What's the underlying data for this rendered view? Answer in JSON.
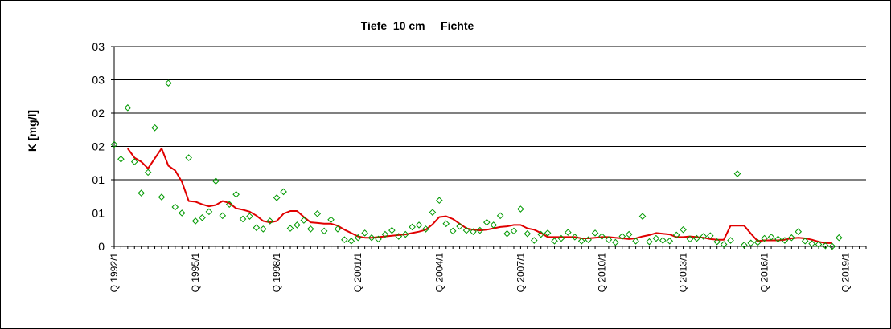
{
  "chart_data": {
    "type": "line",
    "title": "Tiefe  10 cm     Fichte",
    "xlabel": "",
    "ylabel": "K [mg/l]",
    "x_tick_labels": [
      "Q 1992/1",
      "Q 1995/1",
      "Q 1998/1",
      "Q 2001/1",
      "Q 2004/1",
      "Q 2007/1",
      "Q 2010/1",
      "Q 2013/1",
      "Q 2016/1",
      "Q 2019/1"
    ],
    "y_tick_labels": [
      "0",
      "01",
      "01",
      "02",
      "02",
      "03",
      "03"
    ],
    "y_tick_values": [
      0,
      0.5,
      1.0,
      1.5,
      2.0,
      2.5,
      3.0
    ],
    "ylim": [
      0,
      3.0
    ],
    "xlim": [
      1992.0,
      2019.75
    ],
    "grid": "horizontal",
    "colors": {
      "line": "#e00000",
      "markers": "#009900",
      "grid": "#000000"
    },
    "series": [
      {
        "style": "markers-diamond",
        "points": [
          [
            1992.0,
            1.53
          ],
          [
            1992.25,
            1.31
          ],
          [
            1992.5,
            2.08
          ],
          [
            1992.75,
            1.27
          ],
          [
            1993.0,
            0.8
          ],
          [
            1993.25,
            1.11
          ],
          [
            1993.5,
            1.78
          ],
          [
            1993.75,
            0.74
          ],
          [
            1994.0,
            2.45
          ],
          [
            1994.25,
            0.59
          ],
          [
            1994.5,
            0.5
          ],
          [
            1994.75,
            1.33
          ],
          [
            1995.0,
            0.38
          ],
          [
            1995.25,
            0.43
          ],
          [
            1995.5,
            0.52
          ],
          [
            1995.75,
            0.98
          ],
          [
            1996.0,
            0.46
          ],
          [
            1996.25,
            0.63
          ],
          [
            1996.5,
            0.78
          ],
          [
            1996.75,
            0.41
          ],
          [
            1997.0,
            0.45
          ],
          [
            1997.25,
            0.28
          ],
          [
            1997.5,
            0.26
          ],
          [
            1997.75,
            0.38
          ],
          [
            1998.0,
            0.73
          ],
          [
            1998.25,
            0.82
          ],
          [
            1998.5,
            0.27
          ],
          [
            1998.75,
            0.32
          ],
          [
            1999.0,
            0.39
          ],
          [
            1999.25,
            0.26
          ],
          [
            1999.5,
            0.49
          ],
          [
            1999.75,
            0.23
          ],
          [
            2000.0,
            0.4
          ],
          [
            2000.25,
            0.26
          ],
          [
            2000.5,
            0.1
          ],
          [
            2000.75,
            0.08
          ],
          [
            2001.0,
            0.13
          ],
          [
            2001.25,
            0.2
          ],
          [
            2001.5,
            0.13
          ],
          [
            2001.75,
            0.11
          ],
          [
            2002.0,
            0.18
          ],
          [
            2002.25,
            0.24
          ],
          [
            2002.5,
            0.15
          ],
          [
            2002.75,
            0.18
          ],
          [
            2003.0,
            0.29
          ],
          [
            2003.25,
            0.32
          ],
          [
            2003.5,
            0.26
          ],
          [
            2003.75,
            0.51
          ],
          [
            2004.0,
            0.69
          ],
          [
            2004.25,
            0.34
          ],
          [
            2004.5,
            0.23
          ],
          [
            2004.75,
            0.3
          ],
          [
            2005.0,
            0.24
          ],
          [
            2005.25,
            0.22
          ],
          [
            2005.5,
            0.24
          ],
          [
            2005.75,
            0.36
          ],
          [
            2006.0,
            0.32
          ],
          [
            2006.25,
            0.46
          ],
          [
            2006.5,
            0.19
          ],
          [
            2006.75,
            0.23
          ],
          [
            2007.0,
            0.56
          ],
          [
            2007.25,
            0.19
          ],
          [
            2007.5,
            0.09
          ],
          [
            2007.75,
            0.18
          ],
          [
            2008.0,
            0.2
          ],
          [
            2008.25,
            0.08
          ],
          [
            2008.5,
            0.12
          ],
          [
            2008.75,
            0.21
          ],
          [
            2009.0,
            0.14
          ],
          [
            2009.25,
            0.08
          ],
          [
            2009.5,
            0.1
          ],
          [
            2009.75,
            0.2
          ],
          [
            2010.0,
            0.15
          ],
          [
            2010.25,
            0.1
          ],
          [
            2010.5,
            0.06
          ],
          [
            2010.75,
            0.15
          ],
          [
            2011.0,
            0.18
          ],
          [
            2011.25,
            0.08
          ],
          [
            2011.5,
            0.45
          ],
          [
            2011.75,
            0.07
          ],
          [
            2012.0,
            0.12
          ],
          [
            2012.25,
            0.09
          ],
          [
            2012.5,
            0.08
          ],
          [
            2012.75,
            0.17
          ],
          [
            2013.0,
            0.25
          ],
          [
            2013.25,
            0.11
          ],
          [
            2013.5,
            0.12
          ],
          [
            2013.75,
            0.15
          ],
          [
            2014.0,
            0.16
          ],
          [
            2014.25,
            0.07
          ],
          [
            2014.5,
            0.03
          ],
          [
            2014.75,
            0.09
          ],
          [
            2015.0,
            1.09
          ],
          [
            2015.25,
            0.02
          ],
          [
            2015.5,
            0.05
          ],
          [
            2015.75,
            0.06
          ],
          [
            2016.0,
            0.12
          ],
          [
            2016.25,
            0.14
          ],
          [
            2016.5,
            0.11
          ],
          [
            2016.75,
            0.09
          ],
          [
            2017.0,
            0.13
          ],
          [
            2017.25,
            0.22
          ],
          [
            2017.5,
            0.08
          ],
          [
            2017.75,
            0.04
          ],
          [
            2018.0,
            0.03
          ],
          [
            2018.25,
            0.01
          ],
          [
            2018.5,
            0.0
          ],
          [
            2018.75,
            0.13
          ]
        ]
      },
      {
        "style": "line",
        "points": [
          [
            1992.5,
            1.47
          ],
          [
            1992.75,
            1.33
          ],
          [
            1993.0,
            1.27
          ],
          [
            1993.25,
            1.17
          ],
          [
            1993.5,
            1.32
          ],
          [
            1993.75,
            1.47
          ],
          [
            1994.0,
            1.21
          ],
          [
            1994.25,
            1.14
          ],
          [
            1994.5,
            0.97
          ],
          [
            1994.75,
            0.68
          ],
          [
            1995.0,
            0.67
          ],
          [
            1995.25,
            0.63
          ],
          [
            1995.5,
            0.6
          ],
          [
            1995.75,
            0.62
          ],
          [
            1996.0,
            0.68
          ],
          [
            1996.25,
            0.65
          ],
          [
            1996.5,
            0.57
          ],
          [
            1996.75,
            0.55
          ],
          [
            1997.0,
            0.52
          ],
          [
            1997.25,
            0.46
          ],
          [
            1997.5,
            0.38
          ],
          [
            1997.75,
            0.36
          ],
          [
            1998.0,
            0.38
          ],
          [
            1998.25,
            0.49
          ],
          [
            1998.5,
            0.53
          ],
          [
            1998.75,
            0.53
          ],
          [
            1999.0,
            0.44
          ],
          [
            1999.25,
            0.36
          ],
          [
            1999.5,
            0.35
          ],
          [
            1999.75,
            0.34
          ],
          [
            2000.0,
            0.34
          ],
          [
            2000.25,
            0.31
          ],
          [
            2000.5,
            0.25
          ],
          [
            2000.75,
            0.2
          ],
          [
            2001.0,
            0.15
          ],
          [
            2001.25,
            0.13
          ],
          [
            2001.5,
            0.13
          ],
          [
            2001.75,
            0.14
          ],
          [
            2002.0,
            0.15
          ],
          [
            2002.25,
            0.16
          ],
          [
            2002.5,
            0.17
          ],
          [
            2002.75,
            0.18
          ],
          [
            2003.0,
            0.2
          ],
          [
            2003.25,
            0.22
          ],
          [
            2003.5,
            0.25
          ],
          [
            2003.75,
            0.33
          ],
          [
            2004.0,
            0.44
          ],
          [
            2004.25,
            0.45
          ],
          [
            2004.5,
            0.41
          ],
          [
            2004.75,
            0.34
          ],
          [
            2005.0,
            0.27
          ],
          [
            2005.25,
            0.25
          ],
          [
            2005.5,
            0.24
          ],
          [
            2005.75,
            0.25
          ],
          [
            2006.0,
            0.27
          ],
          [
            2006.25,
            0.29
          ],
          [
            2006.5,
            0.3
          ],
          [
            2006.75,
            0.32
          ],
          [
            2007.0,
            0.32
          ],
          [
            2007.25,
            0.27
          ],
          [
            2007.5,
            0.25
          ],
          [
            2007.75,
            0.2
          ],
          [
            2008.0,
            0.14
          ],
          [
            2008.25,
            0.14
          ],
          [
            2008.5,
            0.14
          ],
          [
            2008.75,
            0.14
          ],
          [
            2009.0,
            0.14
          ],
          [
            2009.25,
            0.12
          ],
          [
            2009.5,
            0.12
          ],
          [
            2009.75,
            0.13
          ],
          [
            2010.0,
            0.14
          ],
          [
            2010.25,
            0.14
          ],
          [
            2010.5,
            0.13
          ],
          [
            2010.75,
            0.12
          ],
          [
            2011.0,
            0.11
          ],
          [
            2011.25,
            0.12
          ],
          [
            2011.5,
            0.15
          ],
          [
            2011.75,
            0.17
          ],
          [
            2012.0,
            0.2
          ],
          [
            2012.25,
            0.19
          ],
          [
            2012.5,
            0.18
          ],
          [
            2012.75,
            0.14
          ],
          [
            2013.0,
            0.14
          ],
          [
            2013.25,
            0.15
          ],
          [
            2013.5,
            0.14
          ],
          [
            2013.75,
            0.13
          ],
          [
            2014.0,
            0.11
          ],
          [
            2014.25,
            0.1
          ],
          [
            2014.5,
            0.1
          ],
          [
            2014.75,
            0.31
          ],
          [
            2015.0,
            0.31
          ],
          [
            2015.25,
            0.31
          ],
          [
            2015.5,
            0.19
          ],
          [
            2015.75,
            0.08
          ],
          [
            2016.0,
            0.09
          ],
          [
            2016.25,
            0.09
          ],
          [
            2016.5,
            0.09
          ],
          [
            2016.75,
            0.1
          ],
          [
            2017.0,
            0.12
          ],
          [
            2017.25,
            0.13
          ],
          [
            2017.5,
            0.12
          ],
          [
            2017.75,
            0.1
          ],
          [
            2018.0,
            0.07
          ],
          [
            2018.25,
            0.05
          ],
          [
            2018.5,
            0.05
          ]
        ]
      }
    ]
  }
}
